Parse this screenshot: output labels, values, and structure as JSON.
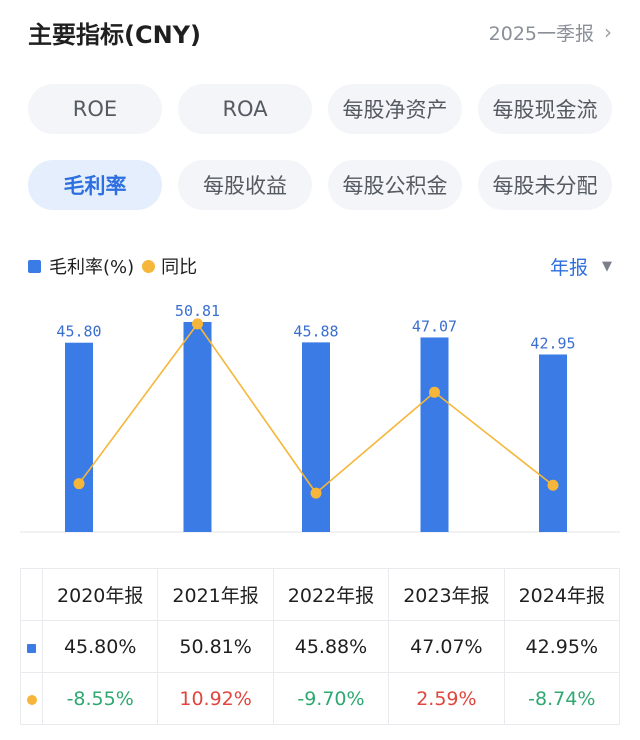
{
  "header": {
    "title": "主要指标(CNY)",
    "period": "2025一季报",
    "chevron_icon": "chevron-right-icon"
  },
  "chips": [
    {
      "label": "ROE",
      "active": false
    },
    {
      "label": "ROA",
      "active": false
    },
    {
      "label": "每股净资产",
      "active": false
    },
    {
      "label": "每股现金流",
      "active": false
    },
    {
      "label": "毛利率",
      "active": true
    },
    {
      "label": "每股收益",
      "active": false
    },
    {
      "label": "每股公积金",
      "active": false
    },
    {
      "label": "每股未分配",
      "active": false
    }
  ],
  "legend": {
    "bar_label": "毛利率(%)",
    "line_label": "同比"
  },
  "frequency": {
    "label": "年报",
    "icon": "triangle-down-icon"
  },
  "colors": {
    "bar": "#3a7be6",
    "line": "#f5b63a",
    "accent": "#2e6fe0",
    "negative": "#2fa871",
    "positive": "#e0463e"
  },
  "chart_data": {
    "type": "bar",
    "categories": [
      "2020年报",
      "2021年报",
      "2022年报",
      "2023年报",
      "2024年报"
    ],
    "series": [
      {
        "name": "毛利率(%)",
        "type": "bar",
        "values": [
          45.8,
          50.81,
          45.88,
          47.07,
          42.95
        ],
        "labels": [
          "45.80",
          "50.81",
          "45.88",
          "47.07",
          "42.95"
        ]
      },
      {
        "name": "同比",
        "type": "line",
        "values": [
          -8.55,
          10.92,
          -9.7,
          2.59,
          -8.74
        ]
      }
    ],
    "grid": false,
    "legend_position": "top-left"
  },
  "table": {
    "headers": [
      "2020年报",
      "2021年报",
      "2022年报",
      "2023年报",
      "2024年报"
    ],
    "rows": [
      {
        "marker": "square",
        "values": [
          "45.80%",
          "50.81%",
          "45.88%",
          "47.07%",
          "42.95%"
        ],
        "tones": [
          "",
          "",
          "",
          "",
          ""
        ]
      },
      {
        "marker": "dot",
        "values": [
          "-8.55%",
          "10.92%",
          "-9.70%",
          "2.59%",
          "-8.74%"
        ],
        "tones": [
          "neg",
          "pos",
          "neg",
          "pos",
          "neg"
        ]
      }
    ]
  }
}
